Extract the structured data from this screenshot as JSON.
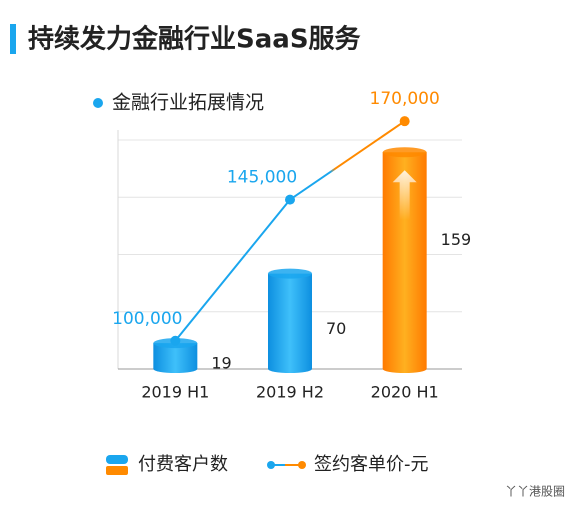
{
  "chart_data": {
    "type": "bar_line",
    "title": "持续发力金融行业SaaS服务",
    "subtitle": "金融行业拓展情况",
    "categories": [
      "2019 H1",
      "2019 H2",
      "2020 H1"
    ],
    "ylim": [
      0,
      168
    ],
    "y2lim": [
      91000,
      164000
    ],
    "grid": true,
    "series": [
      {
        "name": "付费客户数",
        "type": "bar",
        "colors": [
          "#1aa6ee",
          "#1aa6ee",
          "#ff8a00"
        ],
        "values": [
          19,
          70,
          159
        ]
      },
      {
        "name": "签约客单价-元",
        "type": "line",
        "axis": "y2",
        "color": "#1aa6ee",
        "highlight_color": "#ff8a00",
        "values": [
          100000,
          145000,
          170000
        ],
        "value_labels": [
          "100,000",
          "145,000",
          "170,000"
        ]
      }
    ],
    "watermark": "丫丫港股圈"
  }
}
